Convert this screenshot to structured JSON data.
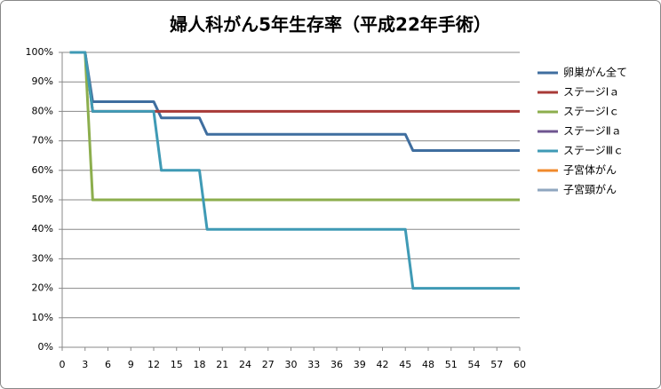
{
  "chart_data": {
    "type": "line",
    "title": "婦人科がん5年生存率（平成22年手術）",
    "xlim": [
      0,
      60
    ],
    "xticks": [
      0,
      3,
      6,
      9,
      12,
      15,
      18,
      21,
      24,
      27,
      30,
      33,
      36,
      39,
      42,
      45,
      48,
      51,
      54,
      57,
      60
    ],
    "ylim": [
      0,
      100
    ],
    "yticks": [
      {
        "value": 0,
        "label": "0%"
      },
      {
        "value": 10,
        "label": "10%"
      },
      {
        "value": 20,
        "label": "20%"
      },
      {
        "value": 30,
        "label": "30%"
      },
      {
        "value": 40,
        "label": "40%"
      },
      {
        "value": 50,
        "label": "50%"
      },
      {
        "value": 60,
        "label": "60%"
      },
      {
        "value": 70,
        "label": "70%"
      },
      {
        "value": 80,
        "label": "80%"
      },
      {
        "value": 90,
        "label": "90%"
      },
      {
        "value": 100,
        "label": "100%"
      }
    ],
    "grid": true,
    "legend": "right",
    "series": [
      {
        "name": "卵巣がん全て",
        "color": "#3f6e9f",
        "x": [
          1,
          3,
          4,
          12,
          13,
          18,
          19,
          45,
          46,
          60
        ],
        "values": [
          100,
          100,
          83.3,
          83.3,
          77.8,
          77.8,
          72.2,
          72.2,
          66.7,
          66.7
        ]
      },
      {
        "name": "ステージⅠａ",
        "color": "#a83a37",
        "x": [
          1,
          3,
          4,
          60
        ],
        "values": [
          100,
          100,
          80,
          80
        ]
      },
      {
        "name": "ステージⅠｃ",
        "color": "#8cae4d",
        "x": [
          1,
          3,
          4,
          60
        ],
        "values": [
          100,
          100,
          50,
          50
        ]
      },
      {
        "name": "ステージⅡａ",
        "color": "#6f5590",
        "x": [],
        "values": []
      },
      {
        "name": "ステージⅢｃ",
        "color": "#3f9ab5",
        "x": [
          1,
          3,
          4,
          12,
          13,
          18,
          19,
          45,
          46,
          60
        ],
        "values": [
          100,
          100,
          80,
          80,
          60,
          60,
          40,
          40,
          20,
          20
        ]
      },
      {
        "name": "子宮体がん",
        "color": "#f08a2c",
        "x": [],
        "values": []
      },
      {
        "name": "子宮頸がん",
        "color": "#8fa6bf",
        "x": [],
        "values": []
      }
    ]
  }
}
